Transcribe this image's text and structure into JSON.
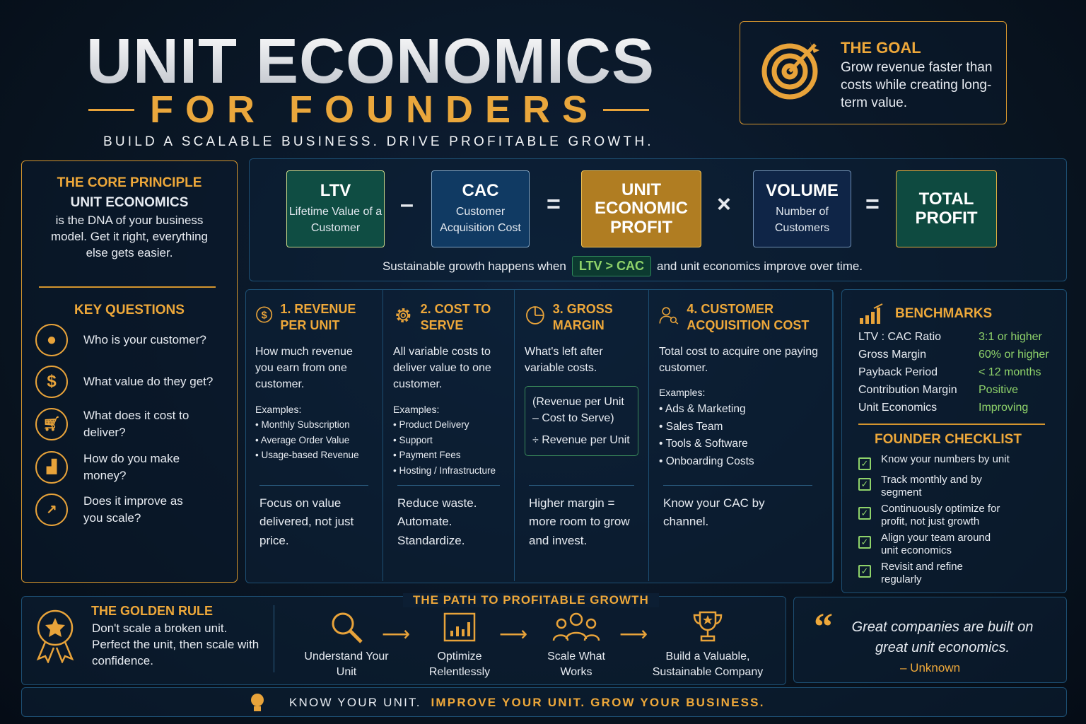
{
  "header": {
    "title": "UNIT ECONOMICS",
    "subtitle": "FOR FOUNDERS",
    "tagline": "BUILD A SCALABLE BUSINESS.  DRIVE PROFITABLE GROWTH."
  },
  "goal": {
    "title": "THE GOAL",
    "text": "Grow revenue faster than costs while creating long-term value.",
    "icon": "target-icon"
  },
  "core": {
    "title": "THE CORE PRINCIPLE",
    "subtitle": "UNIT ECONOMICS",
    "text": "is the DNA of your business model. Get it right, everything else gets easier.",
    "questions_title": "KEY QUESTIONS",
    "questions": [
      {
        "icon": "user-icon",
        "text": "Who is your customer?"
      },
      {
        "icon": "dollar-icon",
        "text": "What value do they get?"
      },
      {
        "icon": "cart-icon",
        "text": "What does it cost to deliver?"
      },
      {
        "icon": "chart-icon",
        "text": "How do you make money?"
      },
      {
        "icon": "growth-icon",
        "text": "Does it improve as you scale?"
      }
    ]
  },
  "formula": {
    "boxes": [
      {
        "title": "LTV",
        "sub": "Lifetime Value of a Customer",
        "color": "#0f4d43"
      },
      {
        "title": "CAC",
        "sub": "Customer Acquisition Cost",
        "color": "#103a63"
      },
      {
        "title": "UNIT ECONOMIC PROFIT",
        "sub": "",
        "color": "#b07d22"
      },
      {
        "title": "VOLUME",
        "sub": "Number of Customers",
        "color": "#0f2547"
      },
      {
        "title": "TOTAL PROFIT",
        "sub": "",
        "color": "#0e4a40"
      }
    ],
    "ops": [
      "–",
      "=",
      "×",
      "="
    ],
    "note_before": "Sustainable growth happens when",
    "note_badge": "LTV > CAC",
    "note_after": "and unit economics improve over time."
  },
  "columns": [
    {
      "title": "1. REVENUE PER UNIT",
      "icon": "dollar-icon",
      "desc": "How much revenue you earn from one customer.",
      "examples_label": "Examples:",
      "examples": [
        "Monthly Subscription",
        "Average Order Value",
        "Usage-based Revenue"
      ],
      "footer": "Focus on value delivered, not just price."
    },
    {
      "title": "2. COST TO SERVE",
      "icon": "gear-icon",
      "desc": "All variable costs to deliver value to one customer.",
      "examples_label": "Examples:",
      "examples": [
        "Product Delivery",
        "Support",
        "Payment Fees",
        "Hosting / Infrastructure"
      ],
      "footer": "Reduce waste. Automate. Standardize."
    },
    {
      "title": "3. GROSS MARGIN",
      "icon": "pie-chart-icon",
      "desc": "What's left after variable costs.",
      "formula_line1": "(Revenue per Unit",
      "formula_line2": "– Cost to Serve)",
      "formula_line3": "÷ Revenue per Unit",
      "footer": "Higher margin = more room to grow and invest."
    },
    {
      "title": "4. CUSTOMER ACQUISITION COST",
      "icon": "user-search-icon",
      "desc": "Total cost to acquire one paying customer.",
      "examples_label": "Examples:",
      "examples": [
        "Ads & Marketing",
        "Sales Team",
        "Tools & Software",
        "Onboarding Costs"
      ],
      "footer": "Know your CAC by channel."
    }
  ],
  "benchmarks": {
    "title": "BENCHMARKS",
    "rows": [
      {
        "label": "LTV : CAC Ratio",
        "value": "3:1 or higher"
      },
      {
        "label": "Gross Margin",
        "value": "60% or higher"
      },
      {
        "label": "Payback Period",
        "value": "< 12 months"
      },
      {
        "label": "Contribution Margin",
        "value": "Positive"
      },
      {
        "label": "Unit Economics",
        "value": "Improving"
      }
    ]
  },
  "checklist": {
    "title": "FOUNDER CHECKLIST",
    "items": [
      {
        "text": "Know your numbers by unit",
        "checked": true
      },
      {
        "text": "Track monthly and by segment",
        "checked": true
      },
      {
        "text": "Continuously optimize for profit, not just growth",
        "checked": true
      },
      {
        "text": "Align your team around unit economics",
        "checked": true
      },
      {
        "text": "Revisit and refine regularly",
        "checked": true
      }
    ]
  },
  "golden_rule": {
    "title": "THE GOLDEN RULE",
    "text": "Don't scale a broken unit. Perfect the unit, then scale with confidence."
  },
  "path": {
    "title": "THE PATH TO PROFITABLE GROWTH",
    "steps": [
      "Understand Your Unit",
      "Optimize Relentlessly",
      "Scale What Works",
      "Build a Valuable, Sustainable Company"
    ]
  },
  "quote": {
    "text": "Great companies are built on great unit economics.",
    "author": "– Unknown"
  },
  "footer": {
    "part1": "KNOW YOUR UNIT.",
    "part2": "IMPROVE YOUR UNIT.  GROW YOUR BUSINESS."
  },
  "colors": {
    "accent": "#eea83a",
    "positive": "#8fd36a",
    "background": "#0a1628"
  }
}
